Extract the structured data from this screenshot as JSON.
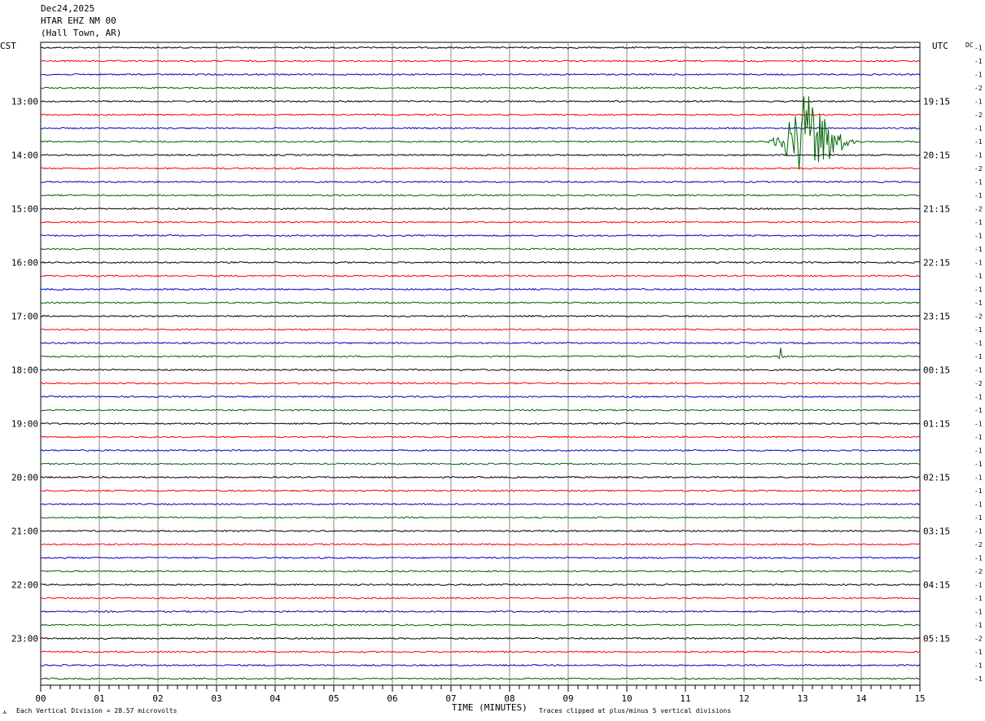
{
  "header": {
    "date": "Dec24,2025",
    "station": "HTAR EHZ NM 00",
    "location": "(Hall Town, AR)"
  },
  "left_axis_label": "CST",
  "right_axis_label": "UTC",
  "dc_label": "DC",
  "footer": {
    "scale_note": "Each Vertical Division =   28.57 microvolts",
    "xlabel": "TIME (MINUTES)",
    "clip_note": "Traces clipped at plus/minus 5 vertical divisions",
    "corner_mark": "ㅅ"
  },
  "chart_data": {
    "type": "line",
    "title": "",
    "xlabel": "TIME (MINUTES)",
    "xlim": [
      0,
      15
    ],
    "x_ticks": [
      "00",
      "01",
      "02",
      "03",
      "04",
      "05",
      "06",
      "07",
      "08",
      "09",
      "10",
      "11",
      "12",
      "13",
      "14",
      "15"
    ],
    "grid": true,
    "trace_count": 48,
    "trace_colors": [
      "#000000",
      "#ff0000",
      "#0000cc",
      "#006400"
    ],
    "left_time_labels": [
      "13:00",
      "14:00",
      "15:00",
      "16:00",
      "17:00",
      "18:00",
      "19:00",
      "20:00",
      "21:00",
      "22:00",
      "23:00"
    ],
    "right_time_labels": [
      "19:15",
      "20:15",
      "21:15",
      "22:15",
      "23:15",
      "00:15",
      "01:15",
      "02:15",
      "03:15",
      "04:15",
      "05:15"
    ],
    "dc_offsets": [
      "-1",
      "-1",
      "-1",
      "-2",
      "-1",
      "-2",
      "-1",
      "-1",
      "-1",
      "-2",
      "-1",
      "-1",
      "-2",
      "-1",
      "-1",
      "-1",
      "-1",
      "-1",
      "-1",
      "-1",
      "-2",
      "-1",
      "-1",
      "-1",
      "-1",
      "-2",
      "-1",
      "-1",
      "-1",
      "-1",
      "-1",
      "-1",
      "-1",
      "-1",
      "-1",
      "-1",
      "-1",
      "-2",
      "-1",
      "-2",
      "-1",
      "-1",
      "-1",
      "-1",
      "-2",
      "-1",
      "-1",
      "-1"
    ],
    "events": [
      {
        "trace_index": 7,
        "start_min": 12.3,
        "peak_min": 13.05,
        "end_min": 14.0,
        "amplitude_divisions": 5
      },
      {
        "trace_index": 23,
        "start_min": 12.55,
        "peak_min": 12.62,
        "end_min": 12.7,
        "amplitude_divisions": 1
      }
    ]
  }
}
